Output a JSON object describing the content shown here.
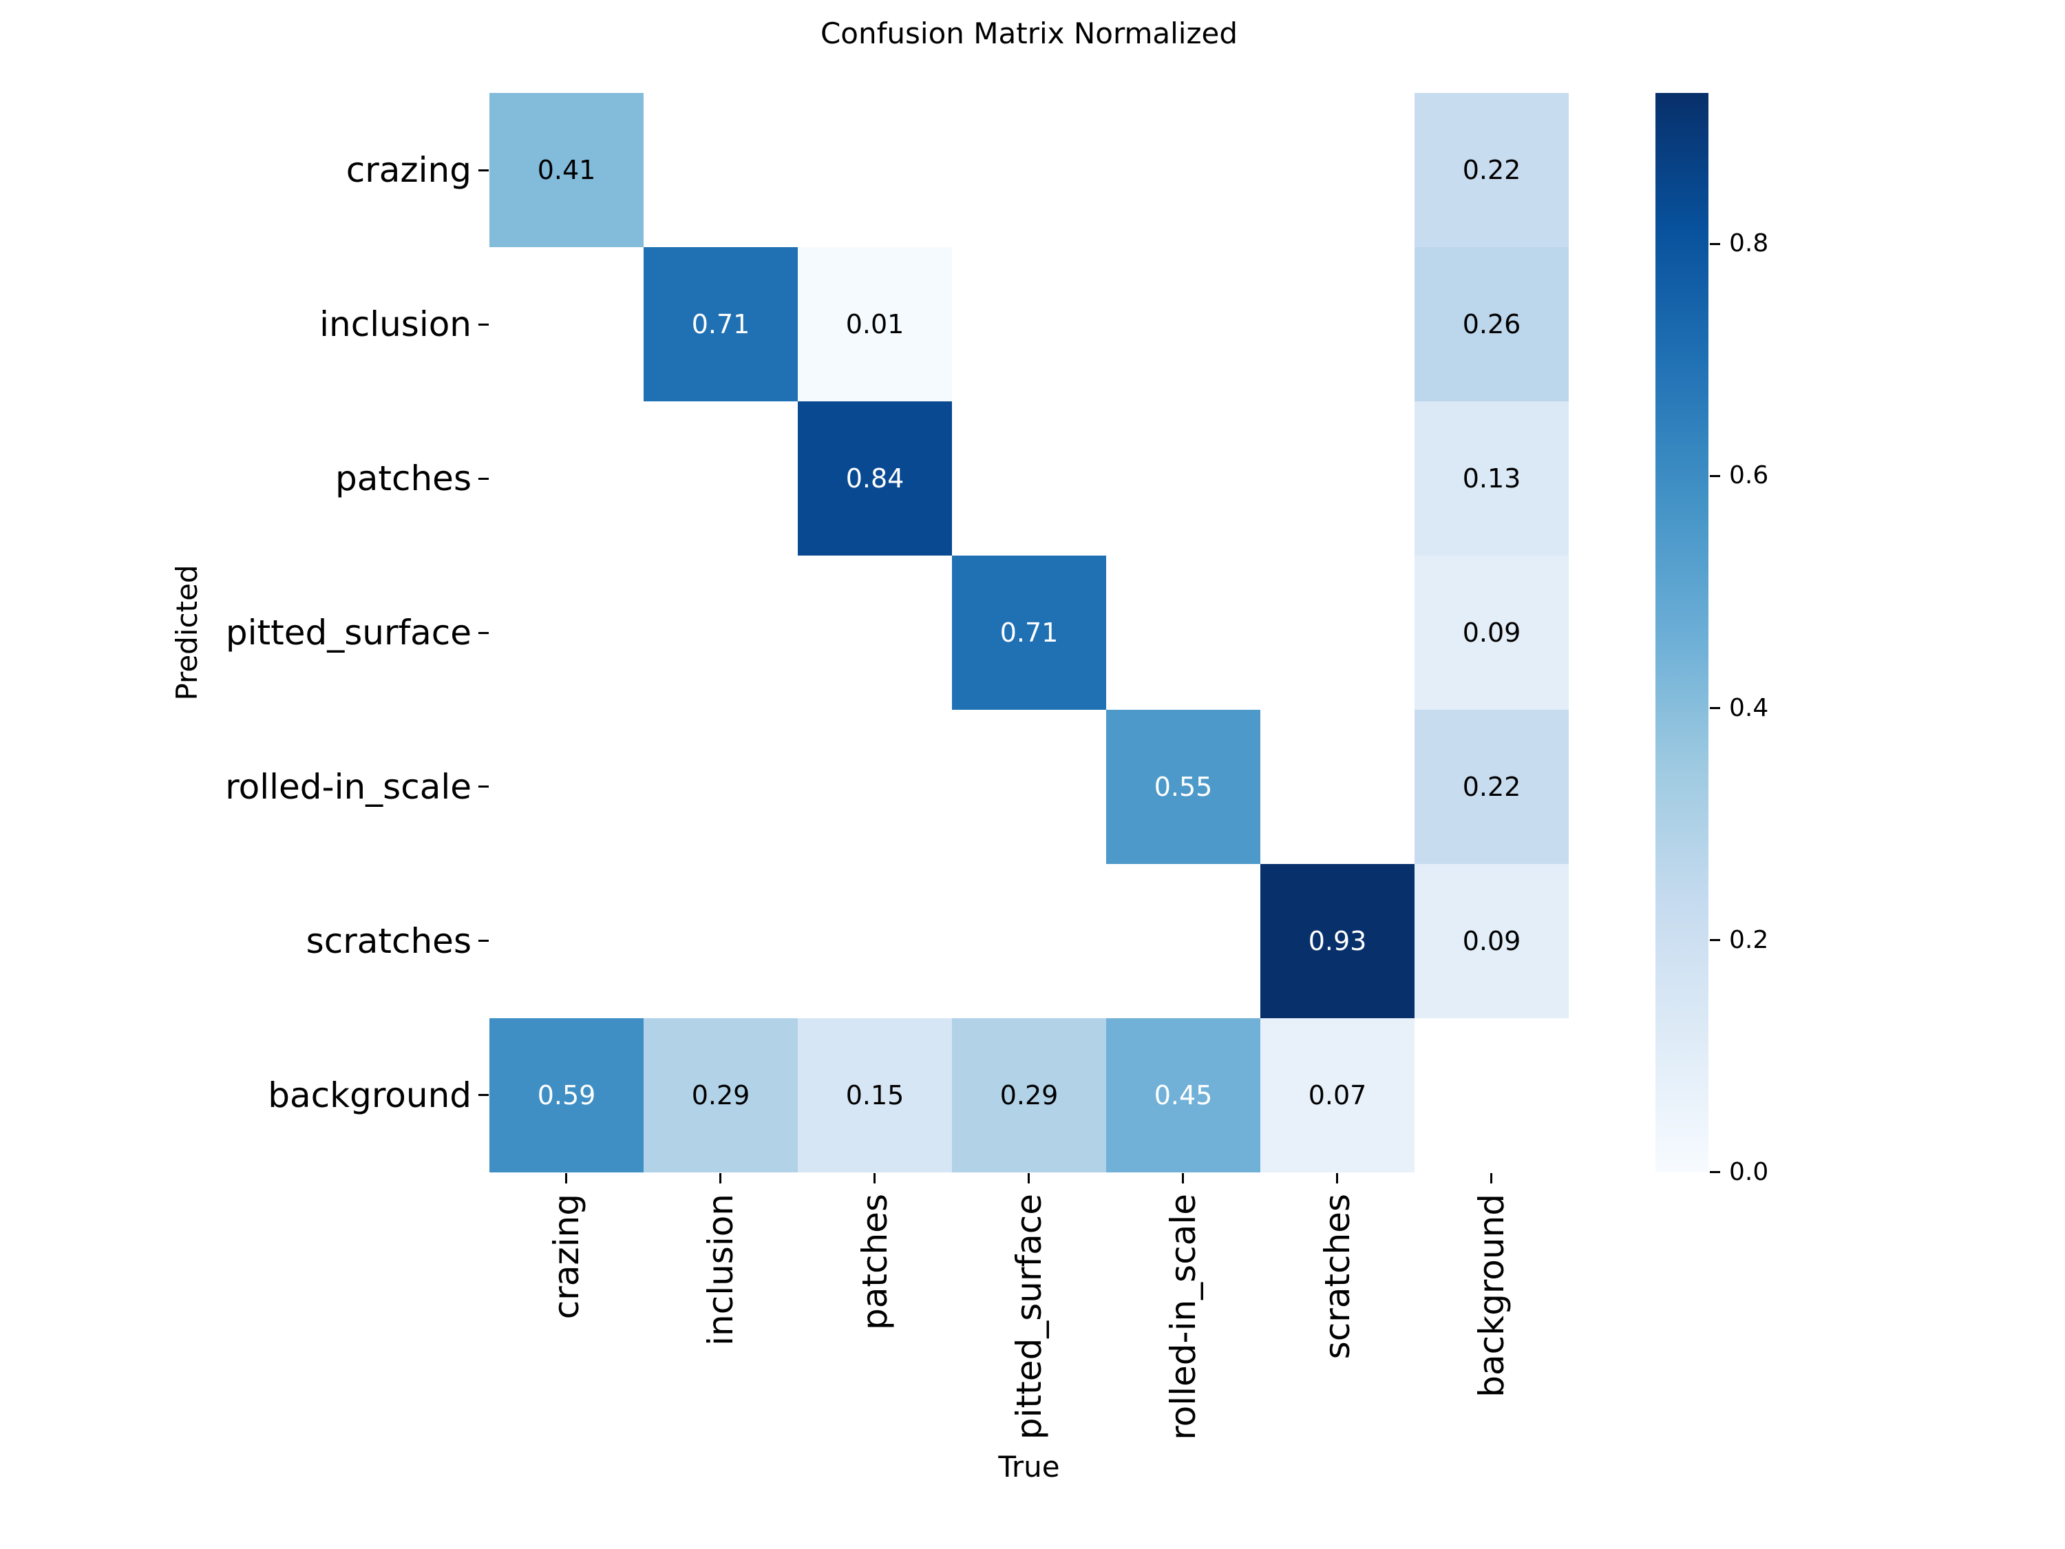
{
  "figure": {
    "title": "Confusion Matrix Normalized",
    "x_axis_label": "True",
    "y_axis_label": "Predicted"
  },
  "chart_data": {
    "type": "heatmap",
    "title": "Confusion Matrix Normalized",
    "xlabel": "True",
    "ylabel": "Predicted",
    "x_categories": [
      "crazing",
      "inclusion",
      "patches",
      "pitted_surface",
      "rolled-in_scale",
      "scratches",
      "background"
    ],
    "y_categories": [
      "crazing",
      "inclusion",
      "patches",
      "pitted_surface",
      "rolled-in_scale",
      "scratches",
      "background"
    ],
    "matrix": [
      [
        0.41,
        null,
        null,
        null,
        null,
        null,
        0.22
      ],
      [
        null,
        0.71,
        0.01,
        null,
        null,
        null,
        0.26
      ],
      [
        null,
        null,
        0.84,
        null,
        null,
        null,
        0.13
      ],
      [
        null,
        null,
        null,
        0.71,
        null,
        null,
        0.09
      ],
      [
        null,
        null,
        null,
        null,
        0.55,
        null,
        0.22
      ],
      [
        null,
        null,
        null,
        null,
        null,
        0.93,
        0.09
      ],
      [
        0.59,
        0.29,
        0.15,
        0.29,
        0.45,
        0.07,
        null
      ]
    ],
    "colormap": "Blues",
    "vmin": 0.0,
    "vmax": 0.93,
    "grid": false,
    "colorbar": {
      "position": "right",
      "ticks": [
        "0.0",
        "0.2",
        "0.4",
        "0.6",
        "0.8"
      ],
      "gradient_css": "linear-gradient(to top, #f7fbff 0%, #deebf7 12.5%, #c6dbef 25%, #9ecae1 37.5%, #6baed6 50%, #4292c6 62.5%, #2171b5 75%, #08519c 87.5%, #08306b 100%)"
    },
    "cells": [
      {
        "row": 0,
        "col": 0,
        "predicted": "crazing",
        "true": "crazing",
        "label": "0.41",
        "color": "#83bbdb",
        "text_color": "#000000"
      },
      {
        "row": 0,
        "col": 6,
        "predicted": "crazing",
        "true": "background",
        "label": "0.22",
        "color": "#c8dcef",
        "text_color": "#000000"
      },
      {
        "row": 1,
        "col": 1,
        "predicted": "inclusion",
        "true": "inclusion",
        "label": "0.71",
        "color": "#2070b4",
        "text_color": "#ffffff"
      },
      {
        "row": 1,
        "col": 2,
        "predicted": "inclusion",
        "true": "patches",
        "label": "0.01",
        "color": "#f5fafe",
        "text_color": "#000000"
      },
      {
        "row": 1,
        "col": 6,
        "predicted": "inclusion",
        "true": "background",
        "label": "0.26",
        "color": "#bcd6eb",
        "text_color": "#000000"
      },
      {
        "row": 2,
        "col": 2,
        "predicted": "patches",
        "true": "patches",
        "label": "0.84",
        "color": "#084991",
        "text_color": "#ffffff"
      },
      {
        "row": 2,
        "col": 6,
        "predicted": "patches",
        "true": "background",
        "label": "0.13",
        "color": "#dbe9f6",
        "text_color": "#000000"
      },
      {
        "row": 3,
        "col": 3,
        "predicted": "pitted_surface",
        "true": "pitted_surface",
        "label": "0.71",
        "color": "#2070b4",
        "text_color": "#ffffff"
      },
      {
        "row": 3,
        "col": 6,
        "predicted": "pitted_surface",
        "true": "background",
        "label": "0.09",
        "color": "#e3eef8",
        "text_color": "#000000"
      },
      {
        "row": 4,
        "col": 4,
        "predicted": "rolled-in_scale",
        "true": "rolled-in_scale",
        "label": "0.55",
        "color": "#4d99ca",
        "text_color": "#ffffff"
      },
      {
        "row": 4,
        "col": 6,
        "predicted": "rolled-in_scale",
        "true": "background",
        "label": "0.22",
        "color": "#c8dcef",
        "text_color": "#000000"
      },
      {
        "row": 5,
        "col": 5,
        "predicted": "scratches",
        "true": "scratches",
        "label": "0.93",
        "color": "#08306b",
        "text_color": "#ffffff"
      },
      {
        "row": 5,
        "col": 6,
        "predicted": "scratches",
        "true": "background",
        "label": "0.09",
        "color": "#e3eef8",
        "text_color": "#000000"
      },
      {
        "row": 6,
        "col": 0,
        "predicted": "background",
        "true": "crazing",
        "label": "0.59",
        "color": "#3f8fc4",
        "text_color": "#ffffff"
      },
      {
        "row": 6,
        "col": 1,
        "predicted": "background",
        "true": "inclusion",
        "label": "0.29",
        "color": "#b2d2e8",
        "text_color": "#000000"
      },
      {
        "row": 6,
        "col": 2,
        "predicted": "background",
        "true": "patches",
        "label": "0.15",
        "color": "#d7e6f4",
        "text_color": "#000000"
      },
      {
        "row": 6,
        "col": 3,
        "predicted": "background",
        "true": "pitted_surface",
        "label": "0.29",
        "color": "#b2d2e8",
        "text_color": "#000000"
      },
      {
        "row": 6,
        "col": 4,
        "predicted": "background",
        "true": "rolled-in_scale",
        "label": "0.45",
        "color": "#71b1d7",
        "text_color": "#ffffff"
      },
      {
        "row": 6,
        "col": 5,
        "predicted": "background",
        "true": "scratches",
        "label": "0.07",
        "color": "#e8f1fa",
        "text_color": "#000000"
      }
    ]
  }
}
